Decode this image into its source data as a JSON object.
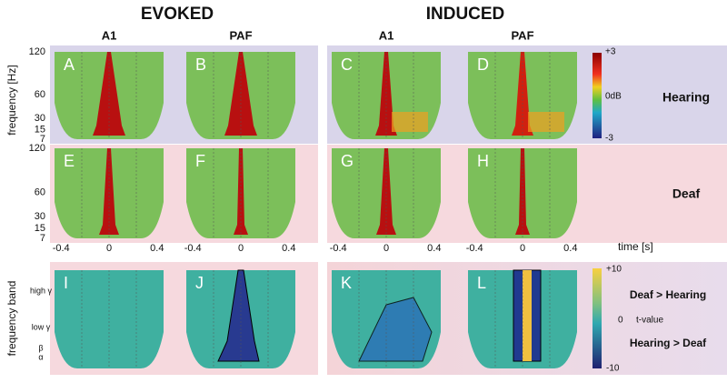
{
  "headers": {
    "evoked": "EVOKED",
    "induced": "INDUCED"
  },
  "columns": [
    "A1",
    "PAF",
    "A1",
    "PAF"
  ],
  "panels": [
    "A",
    "B",
    "C",
    "D",
    "E",
    "F",
    "G",
    "H",
    "I",
    "J",
    "K",
    "L"
  ],
  "y_axis": {
    "label": "frequency [Hz]",
    "ticks": [
      "120",
      "60",
      "30",
      "15",
      "7"
    ]
  },
  "x_axis": {
    "label": "time [s]",
    "ticks": [
      "-0.4",
      "0",
      "0.4"
    ]
  },
  "band_axis": {
    "label": "frequency band",
    "bands": [
      "high γ",
      "low γ",
      "β",
      "α"
    ]
  },
  "colorbar_power": {
    "max": "+3",
    "mid": "0dB",
    "min": "-3"
  },
  "rows": [
    "Hearing",
    "Deaf"
  ],
  "colorbar_t": {
    "max": "+10",
    "zero": "0",
    "label": "t-value",
    "min": "-10",
    "top": "Deaf > Hearing",
    "bottom": "Hearing > Deaf"
  }
}
